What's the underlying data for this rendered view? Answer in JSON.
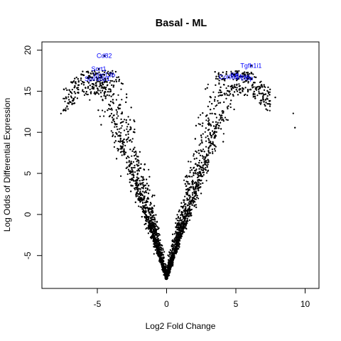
{
  "chart_data": {
    "type": "scatter",
    "title": "Basal - ML",
    "xlabel": "Log2 Fold Change",
    "ylabel": "Log Odds of Differential Expression",
    "xlim": [
      -9,
      11
    ],
    "ylim": [
      -9,
      21
    ],
    "x_ticks": [
      -5,
      0,
      5,
      10
    ],
    "x_tick_labels": [
      "-5",
      "0",
      "5",
      "10"
    ],
    "y_ticks": [
      -5,
      0,
      5,
      10,
      15,
      20
    ],
    "y_tick_labels": [
      "-5",
      "0",
      "5",
      "10",
      "15",
      "20"
    ],
    "grid": false,
    "legend": "none",
    "point_color": "#000000",
    "label_color": "#0000ff",
    "labeled_genes": [
      {
        "name": "Cd82",
        "x": -4.5,
        "y": 19.3
      },
      {
        "name": "Scrt1",
        "x": -4.9,
        "y": 17.7
      },
      {
        "name": "Unc13b",
        "x": -4.5,
        "y": 17.0
      },
      {
        "name": "Spirdop1",
        "x": -5.0,
        "y": 16.5
      },
      {
        "name": "Tgfb1i1",
        "x": 6.1,
        "y": 18.1
      },
      {
        "name": "Kit",
        "x": 4.9,
        "y": 17.0
      },
      {
        "name": "Col9a1",
        "x": 4.5,
        "y": 16.7
      },
      {
        "name": "Sbsn",
        "x": 5.5,
        "y": 16.8
      },
      {
        "name": "Ltbp",
        "x": 5.8,
        "y": 16.6
      }
    ]
  }
}
